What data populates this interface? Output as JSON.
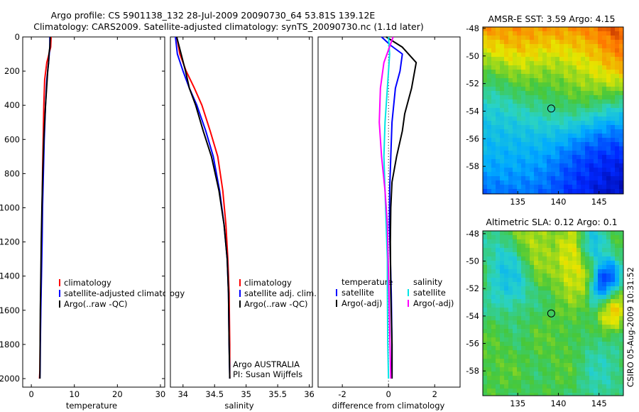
{
  "header": {
    "line1": "Argo profile: CS 5901138_132 28-Jul-2009 20090730_64 53.81S 139.12E",
    "line2": "Climatology: CARS2009. Satellite-adjusted climatology: synTS_20090730.nc (1.1d later)"
  },
  "side_stamp": "CSIRO 05-Aug-2009 10:31:52",
  "colors": {
    "red": "#ff0000",
    "blue": "#0000ff",
    "black": "#000000",
    "cyan": "#00e5e5",
    "magenta": "#ff00ff"
  },
  "chart_data": [
    {
      "type": "line",
      "id": "temperature",
      "xlabel": "temperature",
      "ylabel": "",
      "xlim": [
        -2,
        31
      ],
      "ylim": [
        0,
        2050
      ],
      "y_reversed": true,
      "x_ticks": [
        0,
        10,
        20,
        30
      ],
      "y_ticks": [
        0,
        200,
        400,
        600,
        800,
        1000,
        1200,
        1400,
        1600,
        1800,
        2000
      ],
      "legend": [
        "climatology",
        "satellite-adjusted climatology",
        "Argo(..raw -QC)"
      ],
      "series": [
        {
          "name": "climatology",
          "color": "red",
          "x": [
            4.6,
            4.5,
            3.6,
            3.1,
            2.9,
            2.75,
            2.6,
            2.5,
            2.4,
            2.3,
            2.15,
            2.05,
            2.0,
            1.9
          ],
          "y": [
            0,
            60,
            150,
            250,
            400,
            600,
            800,
            1000,
            1200,
            1400,
            1600,
            1800,
            1950,
            2000
          ]
        },
        {
          "name": "satellite-adjusted climatology",
          "color": "blue",
          "x": [
            4.3,
            4.3,
            4.0,
            3.6,
            3.3,
            3.0,
            2.8,
            2.6,
            2.5,
            2.35,
            2.2,
            2.1,
            2.05,
            2.0
          ],
          "y": [
            0,
            60,
            150,
            250,
            400,
            600,
            800,
            1000,
            1200,
            1400,
            1600,
            1800,
            1950,
            2000
          ]
        },
        {
          "name": "Argo(..raw -QC)",
          "color": "black",
          "x": [
            4.4,
            4.3,
            4.1,
            4.0,
            3.8,
            3.3,
            2.9,
            2.65,
            2.45,
            2.3,
            2.2,
            2.1,
            2.0
          ],
          "y": [
            0,
            60,
            100,
            150,
            200,
            400,
            600,
            800,
            1000,
            1200,
            1400,
            1600,
            2000
          ]
        }
      ]
    },
    {
      "type": "line",
      "id": "salinity",
      "xlabel": "salinity",
      "ylabel": "",
      "xlim": [
        33.8,
        36.05
      ],
      "ylim": [
        0,
        2050
      ],
      "y_reversed": true,
      "x_ticks": [
        34,
        34.5,
        35,
        35.5,
        36
      ],
      "legend": [
        "climatology",
        "satellite adj. clim.",
        "Argo(..raw -QC)"
      ],
      "annotation_lines": [
        "Argo AUSTRALIA",
        "PI: Susan Wijffels"
      ],
      "series": [
        {
          "name": "climatology",
          "color": "red",
          "x": [
            33.9,
            33.95,
            34.05,
            34.18,
            34.3,
            34.43,
            34.55,
            34.63,
            34.68,
            34.71,
            34.73,
            34.74,
            34.74
          ],
          "y": [
            0,
            100,
            200,
            300,
            400,
            550,
            700,
            900,
            1100,
            1300,
            1500,
            1800,
            2000
          ]
        },
        {
          "name": "satellite adj. clim.",
          "color": "blue",
          "x": [
            33.88,
            33.91,
            34.0,
            34.1,
            34.22,
            34.36,
            34.48,
            34.58,
            34.65,
            34.7,
            34.72,
            34.73,
            34.74
          ],
          "y": [
            0,
            100,
            200,
            300,
            400,
            550,
            700,
            900,
            1100,
            1300,
            1500,
            1800,
            2000
          ]
        },
        {
          "name": "Argo(..raw -QC)",
          "color": "black",
          "x": [
            33.9,
            33.97,
            34.04,
            34.1,
            34.2,
            34.32,
            34.45,
            34.57,
            34.65,
            34.7,
            34.72,
            34.73,
            34.74
          ],
          "y": [
            0,
            100,
            200,
            300,
            400,
            550,
            700,
            900,
            1100,
            1300,
            1500,
            1800,
            2000
          ]
        }
      ]
    },
    {
      "type": "line",
      "id": "difference",
      "xlabel": "difference from climatology",
      "ylabel": "",
      "xlim": [
        -3.05,
        3.1
      ],
      "ylim": [
        0,
        2050
      ],
      "y_reversed": true,
      "x_ticks": [
        -2,
        0,
        2
      ],
      "zero_line": true,
      "legend_left_title": "temperature",
      "legend_right_title": "salinity",
      "legend": [
        "satellite",
        "Argo(-adj)",
        "satellite",
        "Argo(-adj)"
      ],
      "series": [
        {
          "name": "temperature satellite",
          "color": "blue",
          "x": [
            -0.3,
            0.1,
            0.6,
            0.5,
            0.3,
            0.15,
            0.1,
            0.05,
            0.04,
            0.08,
            0.12,
            0.15,
            0.15
          ],
          "y": [
            0,
            50,
            100,
            200,
            300,
            500,
            700,
            900,
            1100,
            1300,
            1500,
            1800,
            2000
          ]
        },
        {
          "name": "temperature Argo(-adj)",
          "color": "black",
          "x": [
            -0.1,
            0.6,
            1.2,
            1.0,
            0.7,
            0.6,
            0.35,
            0.15,
            0.1,
            0.08,
            0.1,
            0.15,
            0.15
          ],
          "y": [
            0,
            60,
            150,
            300,
            450,
            550,
            700,
            850,
            1000,
            1200,
            1500,
            1800,
            2000
          ]
        },
        {
          "name": "salinity satellite",
          "color": "cyan",
          "x": [
            0.0,
            0.05,
            -0.05,
            -0.15,
            -0.2,
            -0.15,
            -0.1,
            -0.05,
            -0.05,
            -0.03,
            0.0
          ],
          "y": [
            0,
            100,
            300,
            500,
            700,
            900,
            1100,
            1300,
            1500,
            1800,
            2000
          ]
        },
        {
          "name": "salinity Argo(-adj)",
          "color": "magenta",
          "x": [
            0.2,
            -0.2,
            -0.35,
            -0.4,
            -0.3,
            -0.15,
            -0.05,
            0.0,
            0.05,
            0.1
          ],
          "y": [
            0,
            150,
            300,
            500,
            700,
            900,
            1100,
            1400,
            1700,
            2000
          ]
        }
      ]
    },
    {
      "type": "heatmap",
      "id": "sst-map",
      "title": "AMSR-E SST: 3.59 Argo: 4.15",
      "xlim": [
        130.7,
        148
      ],
      "ylim": [
        -60,
        -47.9
      ],
      "x_ticks": [
        135,
        140,
        145
      ],
      "y_ticks": [
        -48,
        -50,
        -52,
        -54,
        -56,
        -58
      ],
      "marker": {
        "lon": 139.12,
        "lat": -53.81
      },
      "blobs": [
        {
          "lon": 145,
          "lat": -48.5,
          "v": 1.0,
          "r": 6
        },
        {
          "lon": 137,
          "lat": -49,
          "v": 0.85,
          "r": 5
        },
        {
          "lon": 139,
          "lat": -52,
          "v": 0.45,
          "r": 3
        },
        {
          "lon": 143,
          "lat": -51,
          "v": 0.55,
          "r": 3
        },
        {
          "lon": 133,
          "lat": -55,
          "v": 0.35,
          "r": 4
        },
        {
          "lon": 138,
          "lat": -57,
          "v": 0.3,
          "r": 4
        },
        {
          "lon": 146,
          "lat": -57,
          "v": 0.05,
          "r": 4
        },
        {
          "lon": 142,
          "lat": -59,
          "v": 0.15,
          "r": 3
        }
      ]
    },
    {
      "type": "heatmap",
      "id": "sla-map",
      "title": "Altimetric SLA: 0.12 Argo: 0.1",
      "xlim": [
        130.7,
        148
      ],
      "ylim": [
        -59.8,
        -47.8
      ],
      "x_ticks": [
        135,
        140,
        145
      ],
      "y_ticks": [
        -48,
        -50,
        -52,
        -54,
        -56,
        -58
      ],
      "marker": {
        "lon": 139.12,
        "lat": -53.81
      },
      "blobs": [
        {
          "lon": 145.8,
          "lat": -51.6,
          "v": 0.0,
          "r": 1.3
        },
        {
          "lon": 142,
          "lat": -50.2,
          "v": 0.78,
          "r": 2
        },
        {
          "lon": 146.5,
          "lat": -53.3,
          "v": 0.85,
          "r": 1.3
        },
        {
          "lon": 137,
          "lat": -48.5,
          "v": 0.72,
          "r": 2
        },
        {
          "lon": 140,
          "lat": -56,
          "v": 0.6,
          "r": 2.5
        },
        {
          "lon": 134,
          "lat": -51,
          "v": 0.35,
          "r": 2
        },
        {
          "lon": 144,
          "lat": -49,
          "v": 0.3,
          "r": 1.2
        },
        {
          "lon": 132.5,
          "lat": -57.5,
          "v": 0.6,
          "r": 2
        },
        {
          "lon": 145,
          "lat": -58,
          "v": 0.45,
          "r": 2
        }
      ]
    }
  ]
}
